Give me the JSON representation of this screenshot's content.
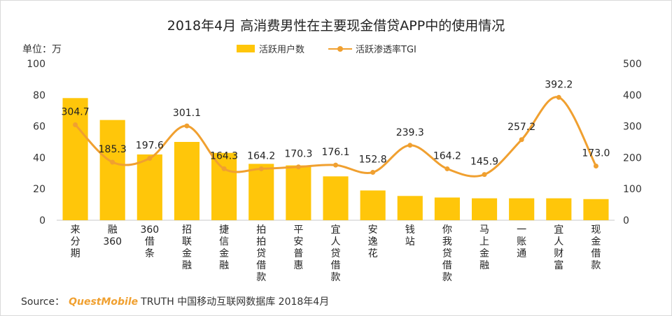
{
  "title": "2018年4月 高消费男性在主要现金借贷APP中的使用情况",
  "unit_label": "单位：万",
  "source": {
    "prefix": "Source：",
    "brand": "QuestMobile",
    "text": "TRUTH 中国移动互联网数据库 2018年4月"
  },
  "colors": {
    "bar": "#FFC60A",
    "line": "#F0A030"
  },
  "chart_data": {
    "type": "bar",
    "categories": [
      "来分期",
      "融360",
      "360借条",
      "招联金融",
      "捷信金融",
      "拍拍贷借款",
      "平安普惠",
      "宜人贷借款",
      "安逸花",
      "钱站",
      "你我贷借款",
      "马上金融",
      "一账通",
      "宜人财富",
      "现金借款"
    ],
    "series": [
      {
        "name": "活跃用户数",
        "type": "bar",
        "axis": "left",
        "values": [
          78,
          64,
          42,
          50,
          43,
          36,
          35,
          28,
          19,
          15.5,
          14.5,
          14,
          14,
          14,
          13.5
        ]
      },
      {
        "name": "活跃渗透率TGI",
        "type": "line",
        "axis": "right",
        "values": [
          304.7,
          185.3,
          197.6,
          301.1,
          164.3,
          164.2,
          170.3,
          176.1,
          152.8,
          239.3,
          164.2,
          145.9,
          257.2,
          392.2,
          173.0
        ]
      }
    ],
    "y_left": {
      "ylim": [
        0,
        100
      ],
      "ticks": [
        0,
        20,
        40,
        60,
        80,
        100
      ]
    },
    "y_right": {
      "ylim": [
        0,
        500
      ],
      "ticks": [
        0,
        100,
        200,
        300,
        400,
        500
      ]
    },
    "legend_position": "top-center",
    "grid": false
  }
}
